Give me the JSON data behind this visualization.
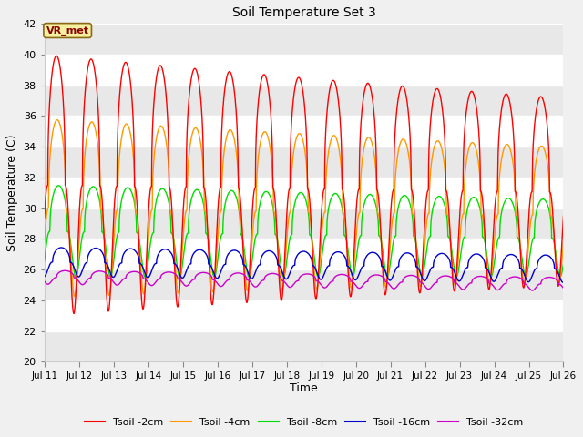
{
  "title": "Soil Temperature Set 3",
  "xlabel": "Time",
  "ylabel": "Soil Temperature (C)",
  "annotation": "VR_met",
  "ylim": [
    20,
    42
  ],
  "yticks": [
    20,
    22,
    24,
    26,
    28,
    30,
    32,
    34,
    36,
    38,
    40,
    42
  ],
  "bg_color": "#f0f0f0",
  "plot_bg_light": "#e8e8e8",
  "plot_bg_white": "#ffffff",
  "line_colors": {
    "2cm": "#ff0000",
    "4cm": "#ff9900",
    "8cm": "#00dd00",
    "16cm": "#0000cc",
    "32cm": "#cc00cc"
  },
  "legend_labels": [
    "Tsoil -2cm",
    "Tsoil -4cm",
    "Tsoil -8cm",
    "Tsoil -16cm",
    "Tsoil -32cm"
  ],
  "series": {
    "2cm": {
      "mean": 31.5,
      "amp": 8.5,
      "phase_shift": 0.62,
      "decay": 0.022,
      "min_floor": 23.0
    },
    "4cm": {
      "mean": 30.0,
      "amp": 5.8,
      "phase_shift": 0.75,
      "decay": 0.018,
      "min_floor": 24.5
    },
    "8cm": {
      "mean": 28.5,
      "amp": 3.0,
      "phase_shift": 1.0,
      "decay": 0.012,
      "min_floor": 25.0
    },
    "16cm": {
      "mean": 26.5,
      "amp": 0.95,
      "phase_shift": 1.5,
      "decay": 0.005,
      "min_floor": 25.5
    },
    "32cm": {
      "mean": 25.5,
      "amp": 0.45,
      "phase_shift": 2.2,
      "decay": 0.002,
      "min_floor": 25.0
    }
  },
  "xtick_days": [
    11,
    12,
    13,
    14,
    15,
    16,
    17,
    18,
    19,
    20,
    21,
    22,
    23,
    24,
    25,
    26
  ],
  "xtick_labels": [
    "Jul 11",
    "Jul 12",
    "Jul 13",
    "Jul 14",
    "Jul 15",
    "Jul 16",
    "Jul 17",
    "Jul 18",
    "Jul 19",
    "Jul 20",
    "Jul 21",
    "Jul 22",
    "Jul 23",
    "Jul 24",
    "Jul 25",
    "Jul 26"
  ]
}
